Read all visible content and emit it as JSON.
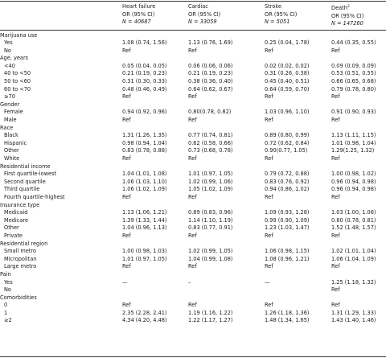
{
  "headers": [
    {
      "name": "Heart failure",
      "stat": "OR (95% CI)",
      "n": "N = 40687",
      "sup": ""
    },
    {
      "name": "Cardiac",
      "stat": "OR (95% CI)",
      "n": "N = 33059",
      "sup": ""
    },
    {
      "name": "Stroke",
      "stat": "OR (95% CI)",
      "n": "N = 5051",
      "sup": ""
    },
    {
      "name": "Death",
      "stat": "OR (95% CI)",
      "n": "N = 147260",
      "sup": "2"
    }
  ],
  "rows": [
    {
      "kind": "section",
      "label": "Marijuana use"
    },
    {
      "kind": "item",
      "label": "Yes",
      "values": [
        "1.08 (0.74, 1.56)",
        "1.13 (0.76, 1.69)",
        "0.25 (0.04, 1.78)",
        "0.44 (0.35, 0.55)"
      ]
    },
    {
      "kind": "item",
      "label": "No",
      "values": [
        "Ref",
        "Ref",
        "Ref",
        "Ref"
      ]
    },
    {
      "kind": "section",
      "label": "Age, years"
    },
    {
      "kind": "item",
      "label": "<40",
      "values": [
        "0.05 (0.04, 0.05)",
        "0.06 (0.06, 0.06)",
        "0.02 (0.02, 0.02)",
        "0.09 (0.09, 0.09)"
      ]
    },
    {
      "kind": "item",
      "label": "40 to <50",
      "values": [
        "0.21 (0.19, 0.23)",
        "0.21 (0.19, 0.23)",
        "0.31 (0.26, 0.38)",
        "0.53 (0.51, 0.55)"
      ]
    },
    {
      "kind": "item",
      "label": "50 to <60",
      "values": [
        "0.31 (0.30, 0.33)",
        "0.38 (0.36, 0.40)",
        "0.45 (0.40, 0.51)",
        "0.66 (0.65, 0.68)"
      ]
    },
    {
      "kind": "item",
      "label": "60 to <70",
      "values": [
        "0.48 (0.46, 0.49)",
        "0.64 (0.62, 0.67)",
        "0.64 (0.59, 0.70)",
        "0.79 (0.78, 0.80)"
      ]
    },
    {
      "kind": "item",
      "label": "≥70",
      "values": [
        "Ref",
        "Ref",
        "Ref",
        "Ref"
      ]
    },
    {
      "kind": "section",
      "label": "Gender"
    },
    {
      "kind": "item",
      "label": "Female",
      "values": [
        "0.94 (0.92, 0.96)",
        "0.80(0.78, 0.82)",
        "1.03 (0.96, 1.10)",
        "0.91 (0.90, 0.93)"
      ]
    },
    {
      "kind": "item",
      "label": "Male",
      "values": [
        "Ref",
        "Ref",
        "Ref",
        "Ref"
      ]
    },
    {
      "kind": "section",
      "label": "Race"
    },
    {
      "kind": "item",
      "label": "Black",
      "values": [
        "1.31 (1.26, 1.35)",
        "0.77 (0.74, 0.81)",
        "0.89 (0.80, 0.99)",
        "1.13 (1.11, 1.15)"
      ]
    },
    {
      "kind": "item",
      "label": "Hispanic",
      "values": [
        "0.98 (0.94, 1.04)",
        "0.62 (0.58, 0.66)",
        "0.72 (0.62, 0.84)",
        "1.01 (0.98, 1.04)"
      ]
    },
    {
      "kind": "item",
      "label": "Other",
      "values": [
        "0.83 (0.78, 0.88)",
        "0.73 (0.68, 0.78)",
        "0.90(0.77, 1.05)",
        "1.29(1.25, 1.32)"
      ]
    },
    {
      "kind": "item",
      "label": "White",
      "values": [
        "Ref",
        "Ref",
        "Ref",
        "Ref"
      ]
    },
    {
      "kind": "section",
      "label": "Residential income"
    },
    {
      "kind": "item",
      "label": "First quartile-lowest",
      "values": [
        "1.04 (1.01, 1.08)",
        "1.01 (0.97, 1.05)",
        "0.79 (0.72, 0.88)",
        "1.00 (0.98, 1.02)"
      ]
    },
    {
      "kind": "item",
      "label": "Second quartile",
      "values": [
        "1.06 (1.03, 1.10)",
        "1.02 (0.99, 1.06)",
        "0.83 (0.76, 0.92)",
        "0.96 (0.94, 0.98)"
      ]
    },
    {
      "kind": "item",
      "label": "Third quartile",
      "values": [
        "1.06 (1.02, 1.09)",
        "1.05 (1.02, 1.09)",
        "0.94 (0.86, 1.02)",
        "0.96 (0.94, 0.98)"
      ]
    },
    {
      "kind": "item",
      "label": "Fourth quartile-highest",
      "values": [
        "Ref",
        "Ref",
        "Ref",
        "Ref"
      ]
    },
    {
      "kind": "section",
      "label": "Insurance type"
    },
    {
      "kind": "item",
      "label": "Medicaid",
      "values": [
        "1.13 (1.06, 1.21)",
        "0.89 (0.83, 0.96)",
        "1.09 (0.93, 1.28)",
        "1.03 (1.00, 1.06)"
      ]
    },
    {
      "kind": "item",
      "label": "Medicare",
      "values": [
        "1.39 (1.33, 1.44)",
        "1.14 (1.10, 1.19)",
        "0.99 (0.90, 1.09)",
        "0.80 (0.78, 0.81)"
      ]
    },
    {
      "kind": "item",
      "label": "Other",
      "values": [
        "1.04 (0.96, 1.13)",
        "0.83 (0.77, 0.91)",
        "1.23 (1.03, 1.47)",
        "1.52 (1.48, 1.57)"
      ]
    },
    {
      "kind": "item",
      "label": "Private",
      "values": [
        "Ref",
        "Ref",
        "Ref",
        "Ref"
      ]
    },
    {
      "kind": "section",
      "label": "Residential region"
    },
    {
      "kind": "item",
      "label": "Small metro",
      "values": [
        "1.00 (0.98, 1.03)",
        "1.02 (0.99, 1.05)",
        "1.06 (0.98, 1.15)",
        "1.02 (1.01, 1.04)"
      ]
    },
    {
      "kind": "item",
      "label": "Micropolitan",
      "values": [
        "1.01 (0.97, 1.05)",
        "1.04 (0.99, 1.08)",
        "1.08 (0.96, 1.21)",
        "1.06 (1.04, 1.09)"
      ]
    },
    {
      "kind": "item",
      "label": "Large metro",
      "values": [
        "Ref",
        "Ref",
        "Ref",
        "Ref"
      ]
    },
    {
      "kind": "section",
      "label": "Pain"
    },
    {
      "kind": "item",
      "label": "Yes",
      "values": [
        "—",
        "–",
        "—",
        "1.25 (1.18, 1.32)"
      ]
    },
    {
      "kind": "item",
      "label": "No",
      "values": [
        "",
        "",
        "",
        "Ref"
      ]
    },
    {
      "kind": "section",
      "label": "Comorbidities"
    },
    {
      "kind": "item",
      "label": "0",
      "values": [
        "Ref",
        "Ref",
        "Ref",
        "Ref"
      ]
    },
    {
      "kind": "item",
      "label": "1",
      "values": [
        "2.35 (2.28, 2.41)",
        "1.19 (1.16, 1.22)",
        "1.26 (1.18, 1.36)",
        "1.31 (1.29, 1.33)"
      ]
    },
    {
      "kind": "item",
      "label": "≥2",
      "values": [
        "4.34 (4.20, 4.48)",
        "1.22 (1.17, 1.27)",
        "1.48 (1.34, 1.65)",
        "1.43 (1.40, 1.46)"
      ]
    }
  ]
}
